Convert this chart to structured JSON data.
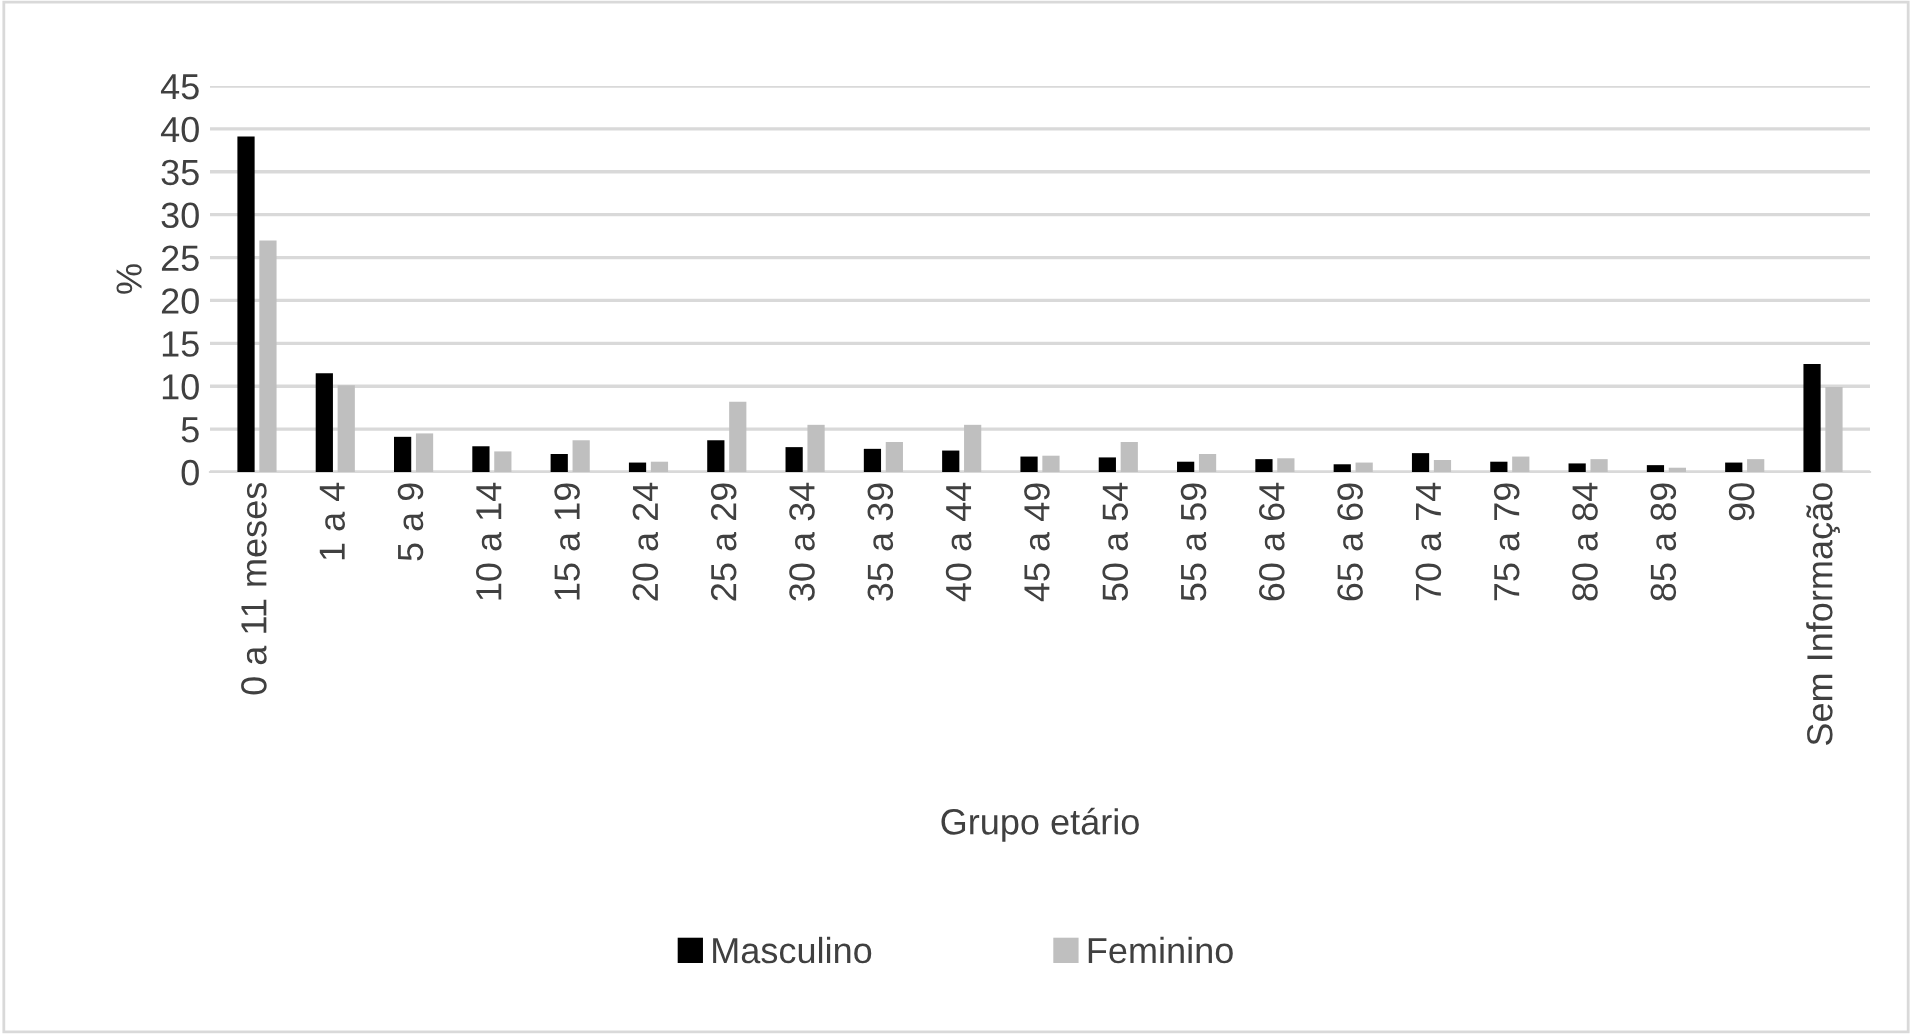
{
  "chart_data": {
    "type": "bar",
    "xlabel": "Grupo etário",
    "ylabel": "%",
    "categories": [
      "0 a 11 meses",
      "1 a 4",
      "5 a 9",
      "10 a 14",
      "15 a 19",
      "20 a 24",
      "25 a 29",
      "30 a 34",
      "35 a 39",
      "40 a 44",
      "45 a 49",
      "50 a 54",
      "55 a 59",
      "60 a 64",
      "65 a 69",
      "70 a 74",
      "75 a 79",
      "80 a 84",
      "85 a 89",
      "90",
      "Sem Informação"
    ],
    "series": [
      {
        "name": "Masculino",
        "color": "#000000",
        "values": [
          39.1,
          11.5,
          4.1,
          3.0,
          2.1,
          1.1,
          3.7,
          2.9,
          2.7,
          2.5,
          1.8,
          1.7,
          1.2,
          1.5,
          0.9,
          2.2,
          1.2,
          1.0,
          0.8,
          1.1,
          12.6
        ]
      },
      {
        "name": "Feminino",
        "color": "#bfbfbf",
        "values": [
          27.0,
          10.1,
          4.5,
          2.4,
          3.7,
          1.2,
          8.2,
          5.5,
          3.5,
          5.5,
          1.9,
          3.5,
          2.1,
          1.6,
          1.1,
          1.4,
          1.8,
          1.5,
          0.5,
          1.5,
          9.9
        ]
      }
    ],
    "ylim": [
      0,
      45
    ],
    "yticks": [
      0,
      5,
      10,
      15,
      20,
      25,
      30,
      35,
      40,
      45
    ],
    "grid": "y",
    "legend": "bottom"
  }
}
